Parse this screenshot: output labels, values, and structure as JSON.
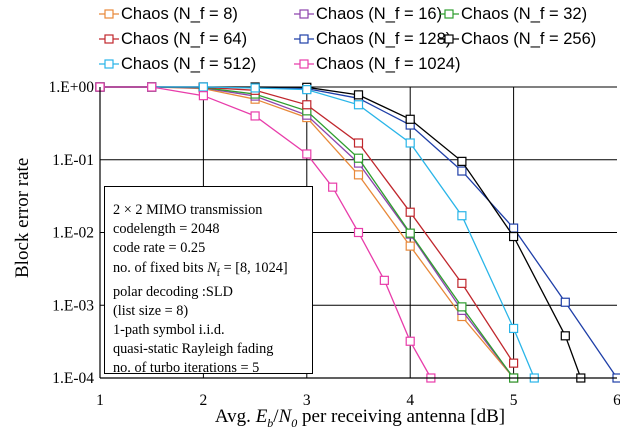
{
  "chart_data": {
    "type": "line",
    "xlabel_parts": [
      "Avg. ",
      "E",
      "b",
      "/",
      "N",
      "0",
      " per receiving antenna [dB]"
    ],
    "ylabel": "Block error rate",
    "xlim": [
      1,
      6
    ],
    "ylim": [
      0.0001,
      1
    ],
    "yscale": "log",
    "x_ticks": [
      "1",
      "2",
      "3",
      "4",
      "5",
      "6"
    ],
    "y_ticks": [
      "1.E+00",
      "1.E-01",
      "1.E-02",
      "1.E-03",
      "1.E-04"
    ],
    "grid": true,
    "legend_position": "top",
    "series": [
      {
        "name": "Chaos (N_f = 8)",
        "color": "#E8893A",
        "points": [
          [
            1,
            1
          ],
          [
            1.5,
            1
          ],
          [
            2,
            0.95
          ],
          [
            2.5,
            0.68
          ],
          [
            3,
            0.38
          ],
          [
            3.5,
            0.062
          ],
          [
            4,
            0.0065
          ],
          [
            4.5,
            0.0007
          ],
          [
            5,
            0.0001
          ]
        ]
      },
      {
        "name": "Chaos (N_f = 16)",
        "color": "#8E44AD",
        "points": [
          [
            1,
            1
          ],
          [
            1.5,
            1
          ],
          [
            2,
            0.97
          ],
          [
            2.5,
            0.75
          ],
          [
            3,
            0.41
          ],
          [
            3.5,
            0.09
          ],
          [
            4,
            0.0095
          ],
          [
            4.5,
            0.00085
          ],
          [
            5,
            0.0001
          ]
        ]
      },
      {
        "name": "Chaos (N_f = 32)",
        "color": "#2E9E2E",
        "points": [
          [
            1,
            1
          ],
          [
            1.5,
            1
          ],
          [
            2,
            0.98
          ],
          [
            2.5,
            0.8
          ],
          [
            3,
            0.47
          ],
          [
            3.5,
            0.105
          ],
          [
            4,
            0.0098
          ],
          [
            4.5,
            0.00095
          ],
          [
            5,
            0.0001
          ]
        ]
      },
      {
        "name": "Chaos (N_f = 64)",
        "color": "#C0272D",
        "points": [
          [
            1,
            1
          ],
          [
            1.5,
            1
          ],
          [
            2,
            0.99
          ],
          [
            2.5,
            0.9
          ],
          [
            3,
            0.57
          ],
          [
            3.5,
            0.17
          ],
          [
            4,
            0.019
          ],
          [
            4.5,
            0.002
          ],
          [
            5,
            0.00016
          ]
        ]
      },
      {
        "name": "Chaos (N_f = 128)",
        "color": "#1F3FA8",
        "points": [
          [
            1,
            1
          ],
          [
            1.5,
            1
          ],
          [
            2,
            1
          ],
          [
            2.5,
            0.98
          ],
          [
            3,
            0.95
          ],
          [
            3.5,
            0.7
          ],
          [
            4,
            0.3
          ],
          [
            4.5,
            0.07
          ],
          [
            5,
            0.0115
          ],
          [
            5.5,
            0.0011
          ],
          [
            6,
            0.0001
          ]
        ]
      },
      {
        "name": "Chaos (N_f = 256)",
        "color": "#000000",
        "points": [
          [
            1,
            1
          ],
          [
            1.5,
            1
          ],
          [
            2,
            1
          ],
          [
            2.5,
            1
          ],
          [
            3,
            0.99
          ],
          [
            3.5,
            0.78
          ],
          [
            4,
            0.36
          ],
          [
            4.5,
            0.095
          ],
          [
            5,
            0.0088
          ],
          [
            5.5,
            0.00038
          ],
          [
            5.65,
            0.0001
          ]
        ]
      },
      {
        "name": "Chaos (N_f = 512)",
        "color": "#2AB5E8",
        "points": [
          [
            1,
            1
          ],
          [
            1.5,
            1
          ],
          [
            2,
            1
          ],
          [
            2.5,
            0.97
          ],
          [
            3,
            0.92
          ],
          [
            3.5,
            0.57
          ],
          [
            4,
            0.17
          ],
          [
            4.5,
            0.017
          ],
          [
            5,
            0.00048
          ],
          [
            5.2,
            0.0001
          ]
        ]
      },
      {
        "name": "Chaos (N_f = 1024)",
        "color": "#E83DAA",
        "points": [
          [
            1,
            1
          ],
          [
            1.5,
            1
          ],
          [
            2,
            0.76
          ],
          [
            2.5,
            0.4
          ],
          [
            3,
            0.12
          ],
          [
            3.25,
            0.042
          ],
          [
            3.5,
            0.01
          ],
          [
            3.75,
            0.0022
          ],
          [
            4,
            0.00032
          ],
          [
            4.2,
            0.0001
          ]
        ]
      }
    ]
  },
  "annotation_lines": [
    "2 × 2 MIMO transmission",
    "codelength = 2048",
    "code rate = 0.25",
    [
      "no. of fixed bits ",
      "N",
      "f",
      " = [8, 1024]"
    ],
    "polar decoding :SLD",
    "(list size = 8)",
    "1-path symbol i.i.d.",
    "quasi-static Rayleigh fading",
    "no. of turbo iterations = 5"
  ]
}
